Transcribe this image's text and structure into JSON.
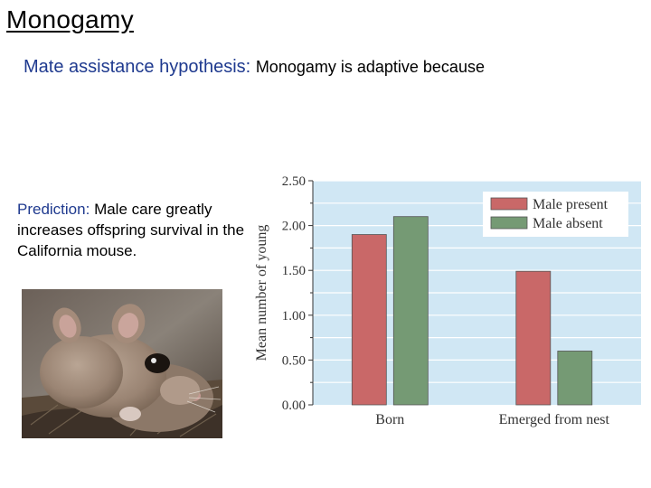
{
  "slide": {
    "title": "Monogamy",
    "hypothesis_term": "Mate assistance hypothesis:",
    "hypothesis_text": "Monogamy is adaptive because",
    "prediction_term": "Prediction:",
    "prediction_text": "Male care greatly increases offspring survival in the California mouse."
  },
  "colors": {
    "male_present": "#c96868",
    "male_absent": "#759a74",
    "plot_background": "#d0e7f4",
    "term_text": "#1f3a8f"
  },
  "chart_data": {
    "type": "bar",
    "categories": [
      "Born",
      "Emerged from nest"
    ],
    "series": [
      {
        "name": "Male present",
        "values": [
          1.9,
          1.49
        ]
      },
      {
        "name": "Male absent",
        "values": [
          2.1,
          0.6
        ]
      }
    ],
    "ylabel": "Mean number of young",
    "ylim": [
      0,
      2.5
    ],
    "yticks": [
      "0.00",
      "0.50",
      "1.00",
      "1.50",
      "2.00",
      "2.50"
    ],
    "tick_values": [
      0,
      0.5,
      1.0,
      1.5,
      2.0,
      2.5
    ],
    "legend_position": "top-right",
    "grid": true
  }
}
